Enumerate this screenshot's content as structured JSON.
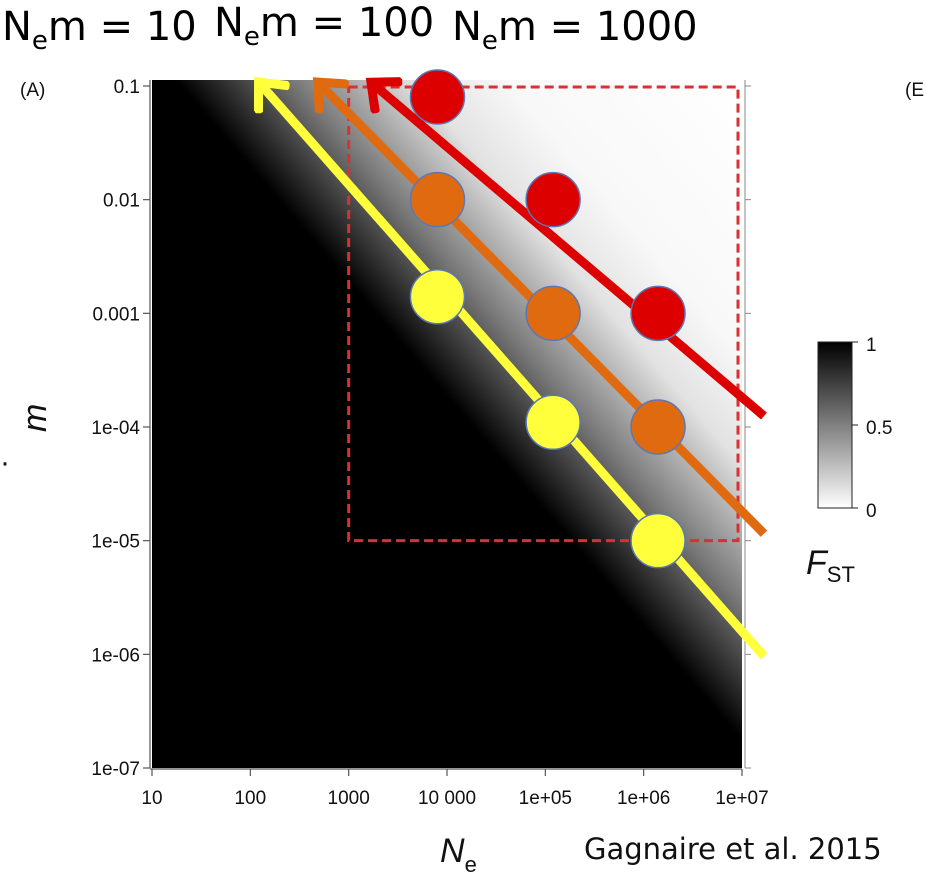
{
  "header": {
    "items": [
      {
        "main": "N",
        "sub": "e",
        "rest": "m = 10"
      },
      {
        "main": "N",
        "sub": "e",
        "rest": "m = 100"
      },
      {
        "main": "N",
        "sub": "e",
        "rest": "m = 1000"
      }
    ]
  },
  "panel_label": "(A)",
  "panel_label_b": "(E",
  "citation": "Gagnaire et al. 2015",
  "chart_data": {
    "type": "heatmap",
    "xlabel": {
      "main": "N",
      "sub": "e"
    },
    "ylabel": "m",
    "x_scale": "log",
    "y_scale": "log",
    "xlim": [
      10,
      10000000
    ],
    "ylim": [
      1e-07,
      0.1
    ],
    "x_ticks": [
      {
        "value": 10,
        "label": "10"
      },
      {
        "value": 100,
        "label": "100"
      },
      {
        "value": 1000,
        "label": "1000"
      },
      {
        "value": 10000,
        "label": "10 000"
      },
      {
        "value": 100000,
        "label": "1e+05"
      },
      {
        "value": 1000000,
        "label": "1e+06"
      },
      {
        "value": 10000000,
        "label": "1e+07"
      }
    ],
    "y_ticks": [
      {
        "value": 0.1,
        "label": "0.1"
      },
      {
        "value": 0.01,
        "label": "0.01"
      },
      {
        "value": 0.001,
        "label": "0.001"
      },
      {
        "value": 0.0001,
        "label": "1e-04"
      },
      {
        "value": 1e-05,
        "label": "1e-05"
      },
      {
        "value": 1e-06,
        "label": "1e-06"
      },
      {
        "value": 1e-07,
        "label": "1e-07"
      }
    ],
    "colorbar": {
      "label": {
        "main": "F",
        "sub": "ST"
      },
      "range": [
        0,
        1
      ],
      "ticks": [
        {
          "value": 1,
          "label": "1"
        },
        {
          "value": 0.5,
          "label": "0.5"
        },
        {
          "value": 0,
          "label": "0"
        }
      ],
      "colors": [
        "#ffffff",
        "#000000"
      ]
    },
    "overlay_lines": [
      {
        "Nem": 10,
        "color": "#ffff3c",
        "x": [
          100,
          10000000
        ],
        "y": [
          0.1,
          1e-06
        ],
        "points": [
          [
            8000,
            0.0014
          ],
          [
            120000,
            0.00011
          ],
          [
            1400000,
            1e-05
          ]
        ]
      },
      {
        "Nem": 100,
        "color": "#e06a10",
        "x": [
          400,
          10000000
        ],
        "y": [
          0.1,
          1.2e-05
        ],
        "points": [
          [
            8000,
            0.01
          ],
          [
            120000,
            0.001
          ],
          [
            1400000,
            0.0001
          ]
        ]
      },
      {
        "Nem": 1000,
        "color": "#dd0000",
        "x": [
          1400,
          10000000
        ],
        "y": [
          0.1,
          0.00013
        ],
        "points": [
          [
            8000,
            0.08
          ],
          [
            120000,
            0.01
          ],
          [
            1400000,
            0.001
          ]
        ]
      }
    ],
    "highlight_region": {
      "x": [
        1000,
        10000000
      ],
      "y": [
        1e-05,
        0.1
      ],
      "color": "#d93030"
    }
  }
}
